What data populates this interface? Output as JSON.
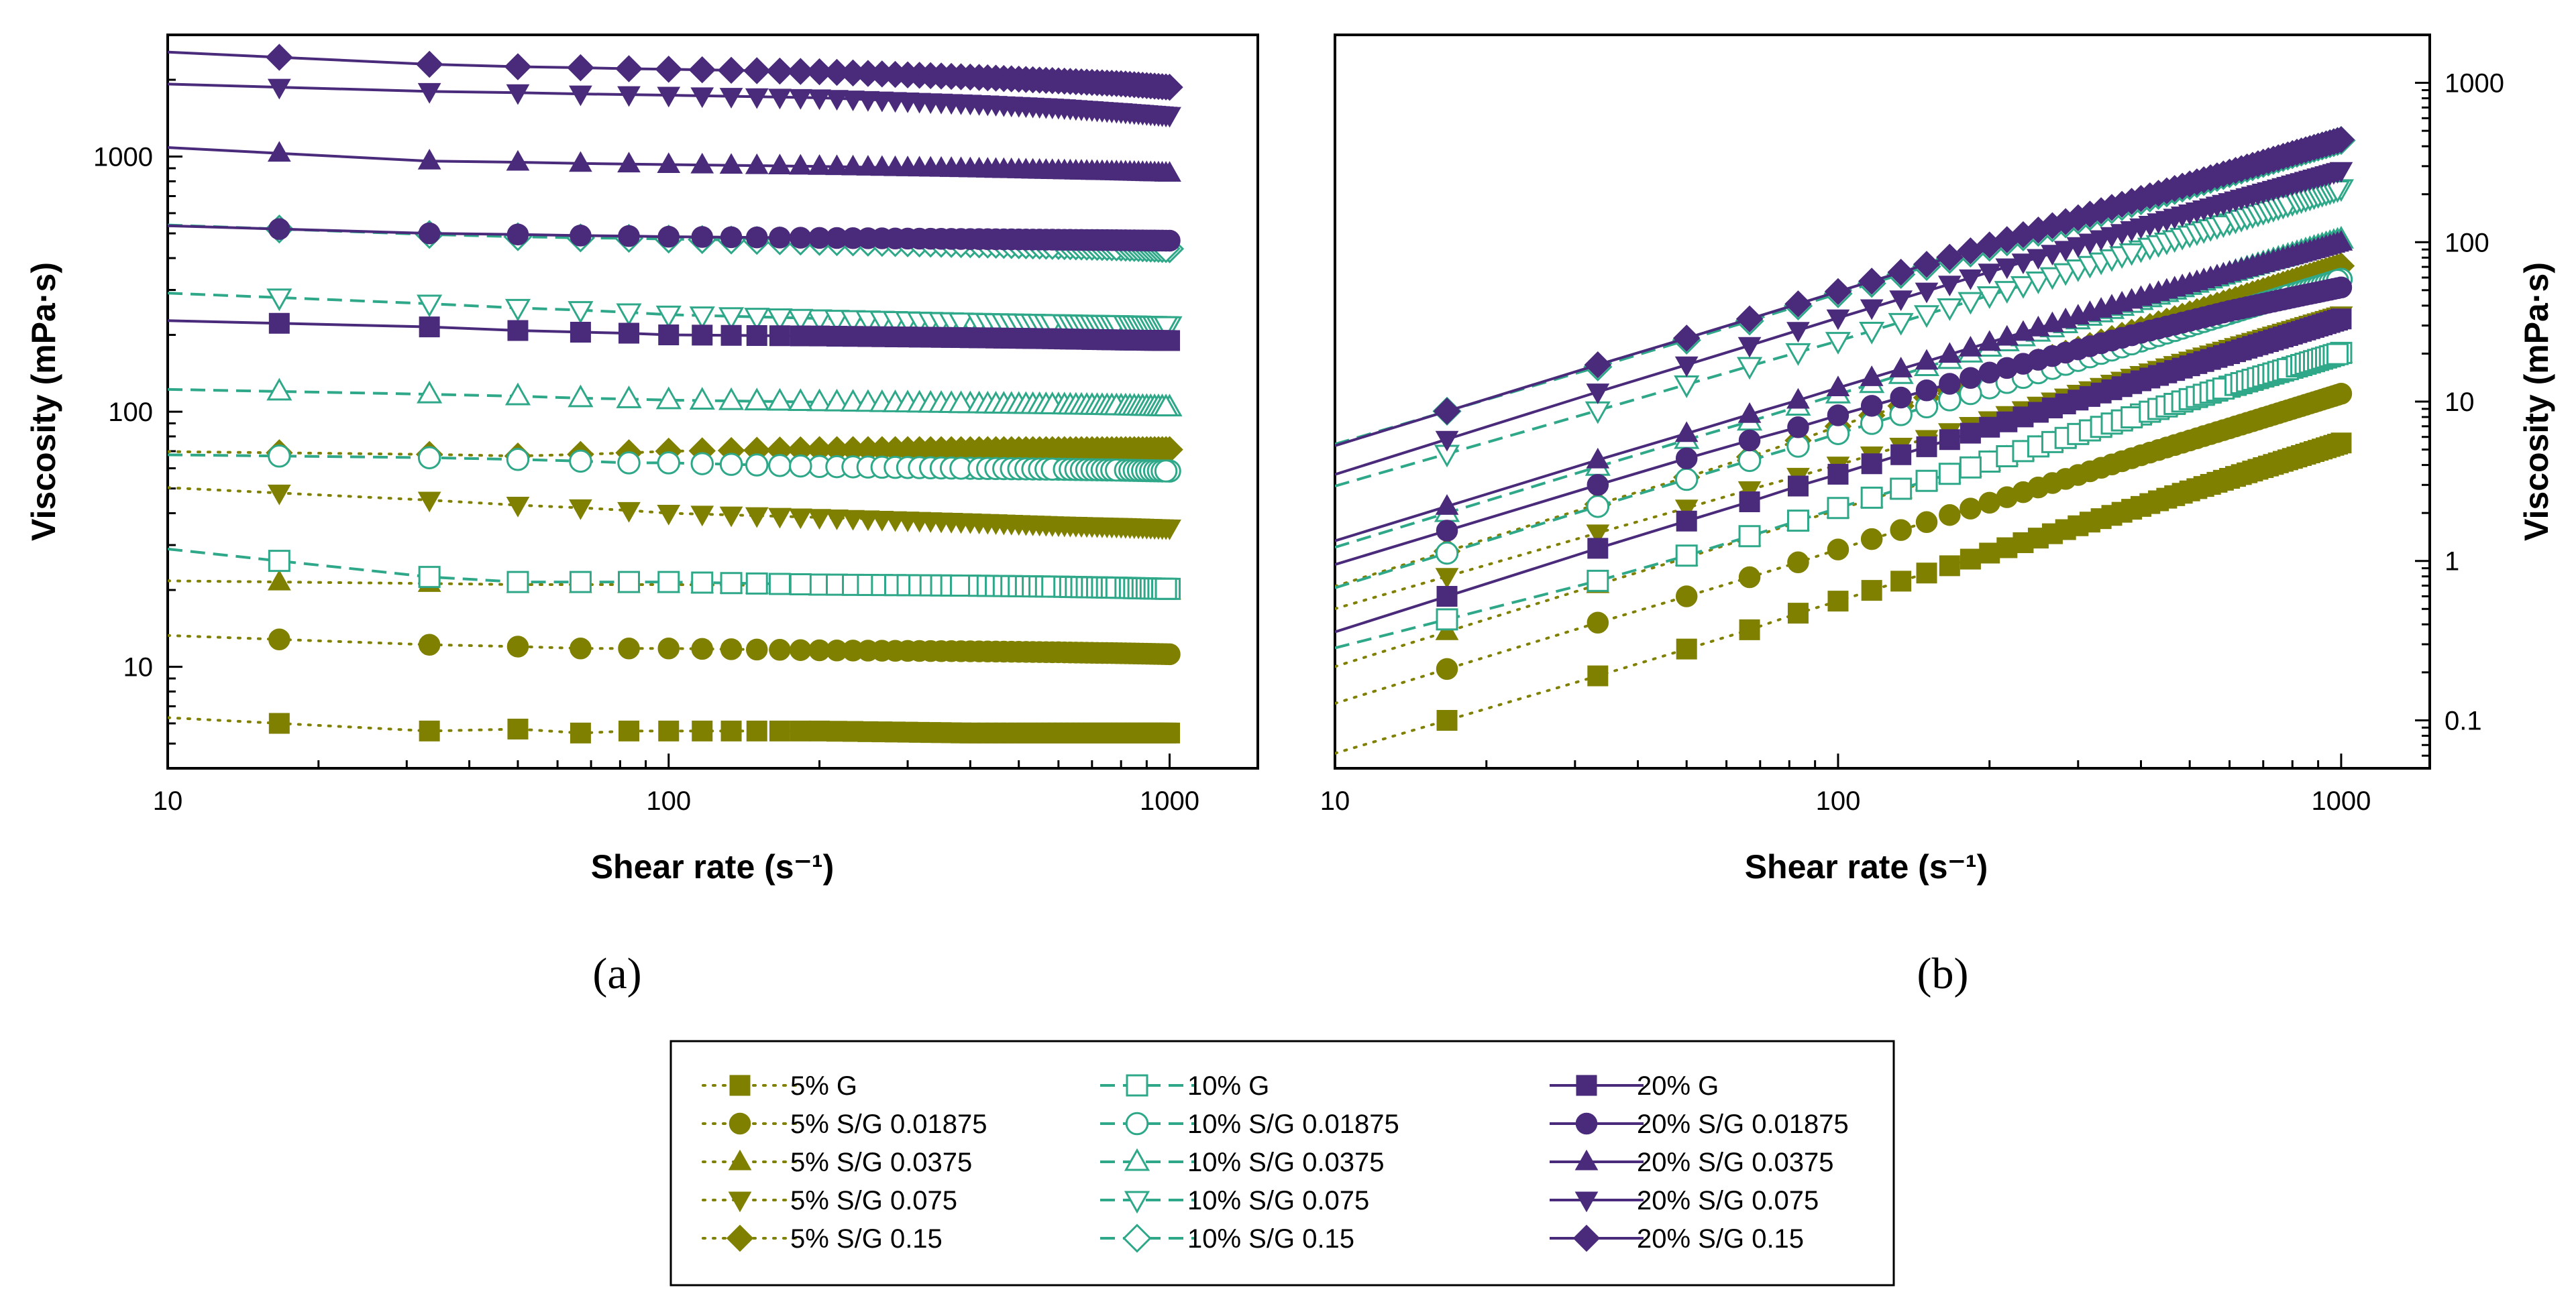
{
  "colors": {
    "g5": "#808000",
    "g10": "#2ea889",
    "g20": "#4a2a7a",
    "axis": "#000000"
  },
  "panels": [
    {
      "label": "(a)",
      "xlabel": "Shear rate (s⁻¹)",
      "ylabel": "Viscosity (mPa·s)",
      "yaxis_side": "left"
    },
    {
      "label": "(b)",
      "xlabel": "Shear rate (s⁻¹)",
      "ylabel": "Viscosity (mPa·s)",
      "yaxis_side": "right"
    }
  ],
  "legend": [
    {
      "text": "5% G"
    },
    {
      "text": "5% S/G 0.01875"
    },
    {
      "text": "5% S/G 0.0375"
    },
    {
      "text": "5% S/G 0.075"
    },
    {
      "text": "5% S/G 0.15"
    },
    {
      "text": "10% G"
    },
    {
      "text": "10% S/G 0.01875"
    },
    {
      "text": "10% S/G 0.0375"
    },
    {
      "text": "10% S/G 0.075"
    },
    {
      "text": "10% S/G 0.15"
    },
    {
      "text": "20% G"
    },
    {
      "text": "20% S/G 0.01875"
    },
    {
      "text": "20% S/G 0.0375"
    },
    {
      "text": "20% S/G 0.075"
    },
    {
      "text": "20% S/G 0.15"
    }
  ],
  "chart_data": [
    {
      "type": "scatter",
      "title": "(a)",
      "xlabel": "Shear rate (s⁻¹)",
      "ylabel": "Viscosity (mPa·s)",
      "xscale": "log",
      "yscale": "log",
      "xlim": [
        10,
        1500
      ],
      "ylim": [
        4,
        3000
      ],
      "xticks": [
        {
          "v": 10,
          "label": "10"
        },
        {
          "v": 100,
          "label": "100"
        },
        {
          "v": 1000,
          "label": "1000"
        }
      ],
      "yticks": [
        {
          "v": 10,
          "label": "10"
        },
        {
          "v": 100,
          "label": "100"
        },
        {
          "v": 1000,
          "label": "1000"
        }
      ],
      "x": [
        16.7,
        33.3,
        50,
        66.7,
        83.3,
        100,
        200,
        400,
        600,
        800,
        1000
      ],
      "series": [
        {
          "name": "5% G",
          "marker": "square",
          "style": "dotted",
          "group": "g5",
          "fill": true,
          "y": [
            6,
            5.6,
            5.7,
            5.5,
            5.6,
            5.6,
            5.6,
            5.5,
            5.5,
            5.5,
            5.5
          ]
        },
        {
          "name": "5% S/G 0.01875",
          "marker": "circle",
          "style": "dotted",
          "group": "g5",
          "fill": true,
          "y": [
            12.8,
            12.2,
            12.0,
            11.8,
            11.8,
            11.8,
            11.6,
            11.5,
            11.4,
            11.3,
            11.2
          ]
        },
        {
          "name": "5% S/G 0.0375",
          "marker": "triangle-up",
          "style": "dotted",
          "group": "g5",
          "fill": true,
          "y": [
            21.5,
            21.2,
            21,
            21,
            21,
            21,
            20.8,
            20.5,
            20.2,
            20,
            19.8
          ]
        },
        {
          "name": "5% S/G 0.075",
          "marker": "triangle-down",
          "style": "dotted",
          "group": "g5",
          "fill": true,
          "y": [
            48,
            45,
            43,
            42,
            41,
            40,
            38.5,
            37,
            36,
            35.5,
            35
          ]
        },
        {
          "name": "5% S/G 0.15",
          "marker": "diamond",
          "style": "dotted",
          "group": "g5",
          "fill": true,
          "y": [
            69,
            68,
            67,
            68,
            69,
            70,
            71,
            71,
            71,
            71,
            71
          ]
        },
        {
          "name": "10% G",
          "marker": "square",
          "style": "dashed",
          "group": "g10",
          "fill": false,
          "y": [
            26,
            22.5,
            21.5,
            21.5,
            21.5,
            21.5,
            21,
            20.8,
            20.6,
            20.4,
            20.2
          ]
        },
        {
          "name": "10% S/G 0.01875",
          "marker": "circle",
          "style": "dashed",
          "group": "g10",
          "fill": false,
          "y": [
            67,
            66,
            65,
            64,
            63,
            63,
            61,
            60,
            59.5,
            59,
            58.5
          ]
        },
        {
          "name": "10% S/G 0.0375",
          "marker": "triangle-up",
          "style": "dashed",
          "group": "g10",
          "fill": false,
          "y": [
            120,
            117,
            115,
            113,
            112,
            111,
            109,
            107,
            106,
            105,
            104
          ]
        },
        {
          "name": "10% S/G 0.075",
          "marker": "triangle-down",
          "style": "dashed",
          "group": "g10",
          "fill": false,
          "y": [
            280,
            265,
            255,
            250,
            245,
            240,
            232,
            225,
            222,
            220,
            218
          ]
        },
        {
          "name": "10% S/G 0.15",
          "marker": "diamond",
          "style": "dashed",
          "group": "g10",
          "fill": false,
          "y": [
            520,
            495,
            485,
            480,
            478,
            475,
            465,
            455,
            448,
            442,
            435
          ]
        },
        {
          "name": "20% G",
          "marker": "square",
          "style": "solid",
          "group": "g20",
          "fill": true,
          "y": [
            222,
            215,
            208,
            205,
            203,
            200,
            198,
            195,
            193,
            191,
            190
          ]
        },
        {
          "name": "20% S/G 0.01875",
          "marker": "circle",
          "style": "solid",
          "group": "g20",
          "fill": true,
          "y": [
            520,
            500,
            495,
            490,
            488,
            485,
            480,
            475,
            472,
            470,
            468
          ]
        },
        {
          "name": "20% S/G 0.0375",
          "marker": "triangle-up",
          "style": "solid",
          "group": "g20",
          "fill": true,
          "y": [
            1030,
            960,
            950,
            940,
            935,
            930,
            915,
            895,
            880,
            870,
            860
          ]
        },
        {
          "name": "20% S/G 0.075",
          "marker": "triangle-down",
          "style": "solid",
          "group": "g20",
          "fill": true,
          "y": [
            1870,
            1800,
            1780,
            1760,
            1750,
            1740,
            1700,
            1620,
            1560,
            1500,
            1450
          ]
        },
        {
          "name": "20% S/G 0.15",
          "marker": "diamond",
          "style": "solid",
          "group": "g20",
          "fill": true,
          "y": [
            2450,
            2300,
            2250,
            2230,
            2210,
            2200,
            2150,
            2050,
            1980,
            1930,
            1870
          ]
        }
      ]
    },
    {
      "type": "scatter",
      "title": "(b)",
      "xlabel": "Shear rate (s⁻¹)",
      "ylabel": "Viscosity (mPa·s)",
      "xscale": "log",
      "yscale": "log",
      "xlim": [
        10,
        1500
      ],
      "ylim": [
        0.05,
        2000
      ],
      "xticks": [
        {
          "v": 10,
          "label": "10"
        },
        {
          "v": 100,
          "label": "100"
        },
        {
          "v": 1000,
          "label": "1000"
        }
      ],
      "yticks": [
        {
          "v": 0.1,
          "label": "0.1"
        },
        {
          "v": 1,
          "label": "1"
        },
        {
          "v": 10,
          "label": "10"
        },
        {
          "v": 100,
          "label": "100"
        },
        {
          "v": 1000,
          "label": "1000"
        }
      ],
      "x": [
        16.7,
        33.3,
        50,
        66.7,
        83.3,
        100,
        200,
        400,
        600,
        800,
        1000
      ],
      "series": [
        {
          "name": "5% G",
          "marker": "square",
          "style": "dotted",
          "group": "g5",
          "fill": true,
          "y": [
            0.1,
            0.19,
            0.28,
            0.37,
            0.47,
            0.56,
            1.12,
            2.2,
            3.3,
            4.4,
            5.5
          ]
        },
        {
          "name": "5% S/G 0.01875",
          "marker": "circle",
          "style": "dotted",
          "group": "g5",
          "fill": true,
          "y": [
            0.21,
            0.41,
            0.6,
            0.79,
            0.98,
            1.18,
            2.32,
            4.6,
            6.8,
            9.0,
            11.2
          ]
        },
        {
          "name": "5% S/G 0.0375",
          "marker": "triangle-up",
          "style": "dotted",
          "group": "g5",
          "fill": true,
          "y": [
            0.36,
            0.71,
            1.05,
            1.4,
            1.75,
            2.1,
            4.16,
            8.2,
            12.1,
            16,
            19.8
          ]
        },
        {
          "name": "5% S/G 0.075",
          "marker": "triangle-down",
          "style": "dotted",
          "group": "g5",
          "fill": true,
          "y": [
            0.8,
            1.5,
            2.15,
            2.8,
            3.4,
            4.0,
            7.7,
            14.8,
            21.6,
            28.4,
            35
          ]
        },
        {
          "name": "5% S/G 0.15",
          "marker": "diamond",
          "style": "dotted",
          "group": "g5",
          "fill": true,
          "y": [
            1.15,
            2.27,
            3.35,
            4.5,
            5.7,
            7.0,
            14.2,
            28.4,
            42.6,
            56.8,
            71
          ]
        },
        {
          "name": "10% G",
          "marker": "square",
          "style": "dashed",
          "group": "g10",
          "fill": false,
          "y": [
            0.43,
            0.75,
            1.08,
            1.43,
            1.79,
            2.15,
            4.2,
            8.3,
            12.4,
            16.3,
            20.2
          ]
        },
        {
          "name": "10% S/G 0.01875",
          "marker": "circle",
          "style": "dashed",
          "group": "g10",
          "fill": false,
          "y": [
            1.12,
            2.2,
            3.25,
            4.27,
            5.25,
            6.3,
            12.2,
            24,
            35.7,
            47.2,
            58.5
          ]
        },
        {
          "name": "10% S/G 0.0375",
          "marker": "triangle-up",
          "style": "dashed",
          "group": "g10",
          "fill": false,
          "y": [
            2.0,
            3.9,
            5.75,
            7.5,
            9.3,
            11.1,
            21.8,
            42.8,
            63.6,
            84,
            104
          ]
        },
        {
          "name": "10% S/G 0.075",
          "marker": "triangle-down",
          "style": "dashed",
          "group": "g10",
          "fill": false,
          "y": [
            4.7,
            8.8,
            12.8,
            16.7,
            20.4,
            24,
            46.4,
            90,
            133,
            176,
            218
          ]
        },
        {
          "name": "10% S/G 0.15",
          "marker": "diamond",
          "style": "dashed",
          "group": "g10",
          "fill": false,
          "y": [
            8.7,
            16.5,
            24.3,
            32,
            39.8,
            47.5,
            93,
            182,
            269,
            354,
            435
          ]
        },
        {
          "name": "20% G",
          "marker": "square",
          "style": "solid",
          "group": "g20",
          "fill": true,
          "y": [
            0.6,
            1.2,
            1.78,
            2.35,
            2.95,
            3.5,
            6.9,
            13.5,
            20,
            26.5,
            33
          ]
        },
        {
          "name": "20% S/G 0.01875",
          "marker": "circle",
          "style": "solid",
          "group": "g20",
          "fill": true,
          "y": [
            1.55,
            3.0,
            4.4,
            5.7,
            6.9,
            8.2,
            15.2,
            27,
            37,
            45,
            52
          ]
        },
        {
          "name": "20% S/G 0.0375",
          "marker": "triangle-up",
          "style": "solid",
          "group": "g20",
          "fill": true,
          "y": [
            2.2,
            4.3,
            6.3,
            8.3,
            10.2,
            12.2,
            23.5,
            45,
            64.5,
            82,
            100
          ]
        },
        {
          "name": "20% S/G 0.075",
          "marker": "triangle-down",
          "style": "solid",
          "group": "g20",
          "fill": true,
          "y": [
            5.8,
            11.5,
            17,
            22.5,
            28,
            33.5,
            65,
            125,
            180,
            232,
            282
          ]
        },
        {
          "name": "20% S/G 0.15",
          "marker": "diamond",
          "style": "solid",
          "group": "g20",
          "fill": true,
          "y": [
            8.7,
            17,
            25,
            33,
            41,
            49,
            96,
            188,
            275,
            360,
            440
          ]
        }
      ]
    }
  ]
}
